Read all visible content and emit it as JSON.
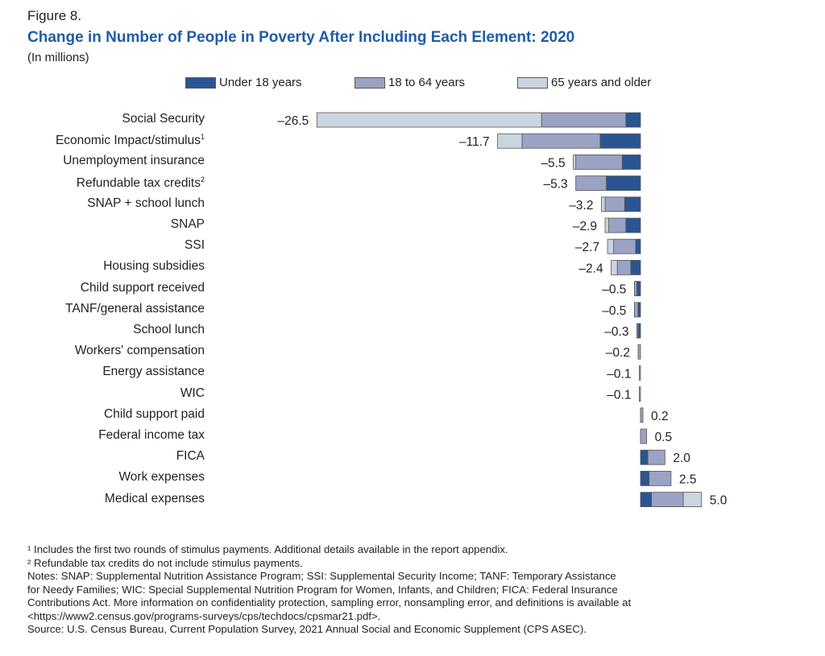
{
  "figure_label": "Figure 8.",
  "chart_data": {
    "type": "bar",
    "orientation": "horizontal",
    "stacked": true,
    "title": "Change in Number of People in Poverty After Including Each Element: 2020",
    "subtitle": "(In millions)",
    "legend_position": "top",
    "grid": false,
    "xlim": [
      -26.5,
      5.0
    ],
    "categories": [
      "Social Security",
      "Economic Impact/stimulus",
      "Unemployment insurance",
      "Refundable tax credits",
      "SNAP + school lunch",
      "SNAP",
      "SSI",
      "Housing subsidies",
      "Child support received",
      "TANF/general assistance",
      "School lunch",
      "Workers' compensation",
      "Energy assistance",
      "WIC",
      "Child support paid",
      "Federal income tax",
      "FICA",
      "Work expenses",
      "Medical expenses"
    ],
    "category_footnotes": [
      "",
      "1",
      "",
      "2",
      "",
      "",
      "",
      "",
      "",
      "",
      "",
      "",
      "",
      "",
      "",
      "",
      "",
      "",
      ""
    ],
    "totals": [
      -26.5,
      -11.7,
      -5.5,
      -5.3,
      -3.2,
      -2.9,
      -2.7,
      -2.4,
      -0.5,
      -0.5,
      -0.3,
      -0.2,
      -0.1,
      -0.1,
      0.2,
      0.5,
      2.0,
      2.5,
      5.0
    ],
    "total_labels": [
      "–26.5",
      "–11.7",
      "–5.5",
      "–5.3",
      "–3.2",
      "–2.9",
      "–2.7",
      "–2.4",
      "–0.5",
      "–0.5",
      "–0.3",
      "–0.2",
      "–0.1",
      "–0.1",
      "0.2",
      "0.5",
      "2.0",
      "2.5",
      "5.0"
    ],
    "series": [
      {
        "name": "Under 18 years",
        "color": "#2b5592",
        "values": [
          -1.2,
          -3.3,
          -1.5,
          -2.8,
          -1.3,
          -1.2,
          -0.4,
          -0.8,
          -0.3,
          -0.2,
          -0.2,
          0,
          0,
          0,
          0,
          0,
          0.6,
          0.7,
          0.9
        ]
      },
      {
        "name": "18 to 64 years",
        "color": "#9aa3c4",
        "values": [
          -6.9,
          -6.4,
          -3.8,
          -2.5,
          -1.6,
          -1.4,
          -1.8,
          -1.1,
          -0.2,
          -0.3,
          -0.1,
          -0.2,
          -0.1,
          -0.1,
          0.2,
          0.5,
          1.4,
          1.8,
          2.6
        ]
      },
      {
        "name": "65 years and older",
        "color": "#c9d5df",
        "values": [
          -18.4,
          -2.0,
          -0.2,
          0,
          -0.3,
          -0.3,
          -0.5,
          -0.5,
          0,
          0,
          0,
          0,
          0,
          0,
          0,
          0,
          0,
          0,
          1.5
        ]
      }
    ]
  },
  "notes": [
    "¹ Includes the first two rounds of stimulus payments. Additional details available in the report appendix.",
    "² Refundable tax credits do not include stimulus payments.",
    "Notes: SNAP: Supplemental Nutrition Assistance Program; SSI: Supplemental Security Income; TANF: Temporary Assistance\nfor Needy Families; WIC: Special Supplemental Nutrition Program for Women, Infants, and Children; FICA: Federal Insurance\nContributions Act. More information on confidentiality protection, sampling error, nonsampling error, and definitions is available at\n<https://www2.census.gov/programs-surveys/cps/techdocs/cpsmar21.pdf>.",
    "Source: U.S. Census Bureau, Current Population Survey, 2021 Annual Social and Economic Supplement (CPS ASEC)."
  ]
}
